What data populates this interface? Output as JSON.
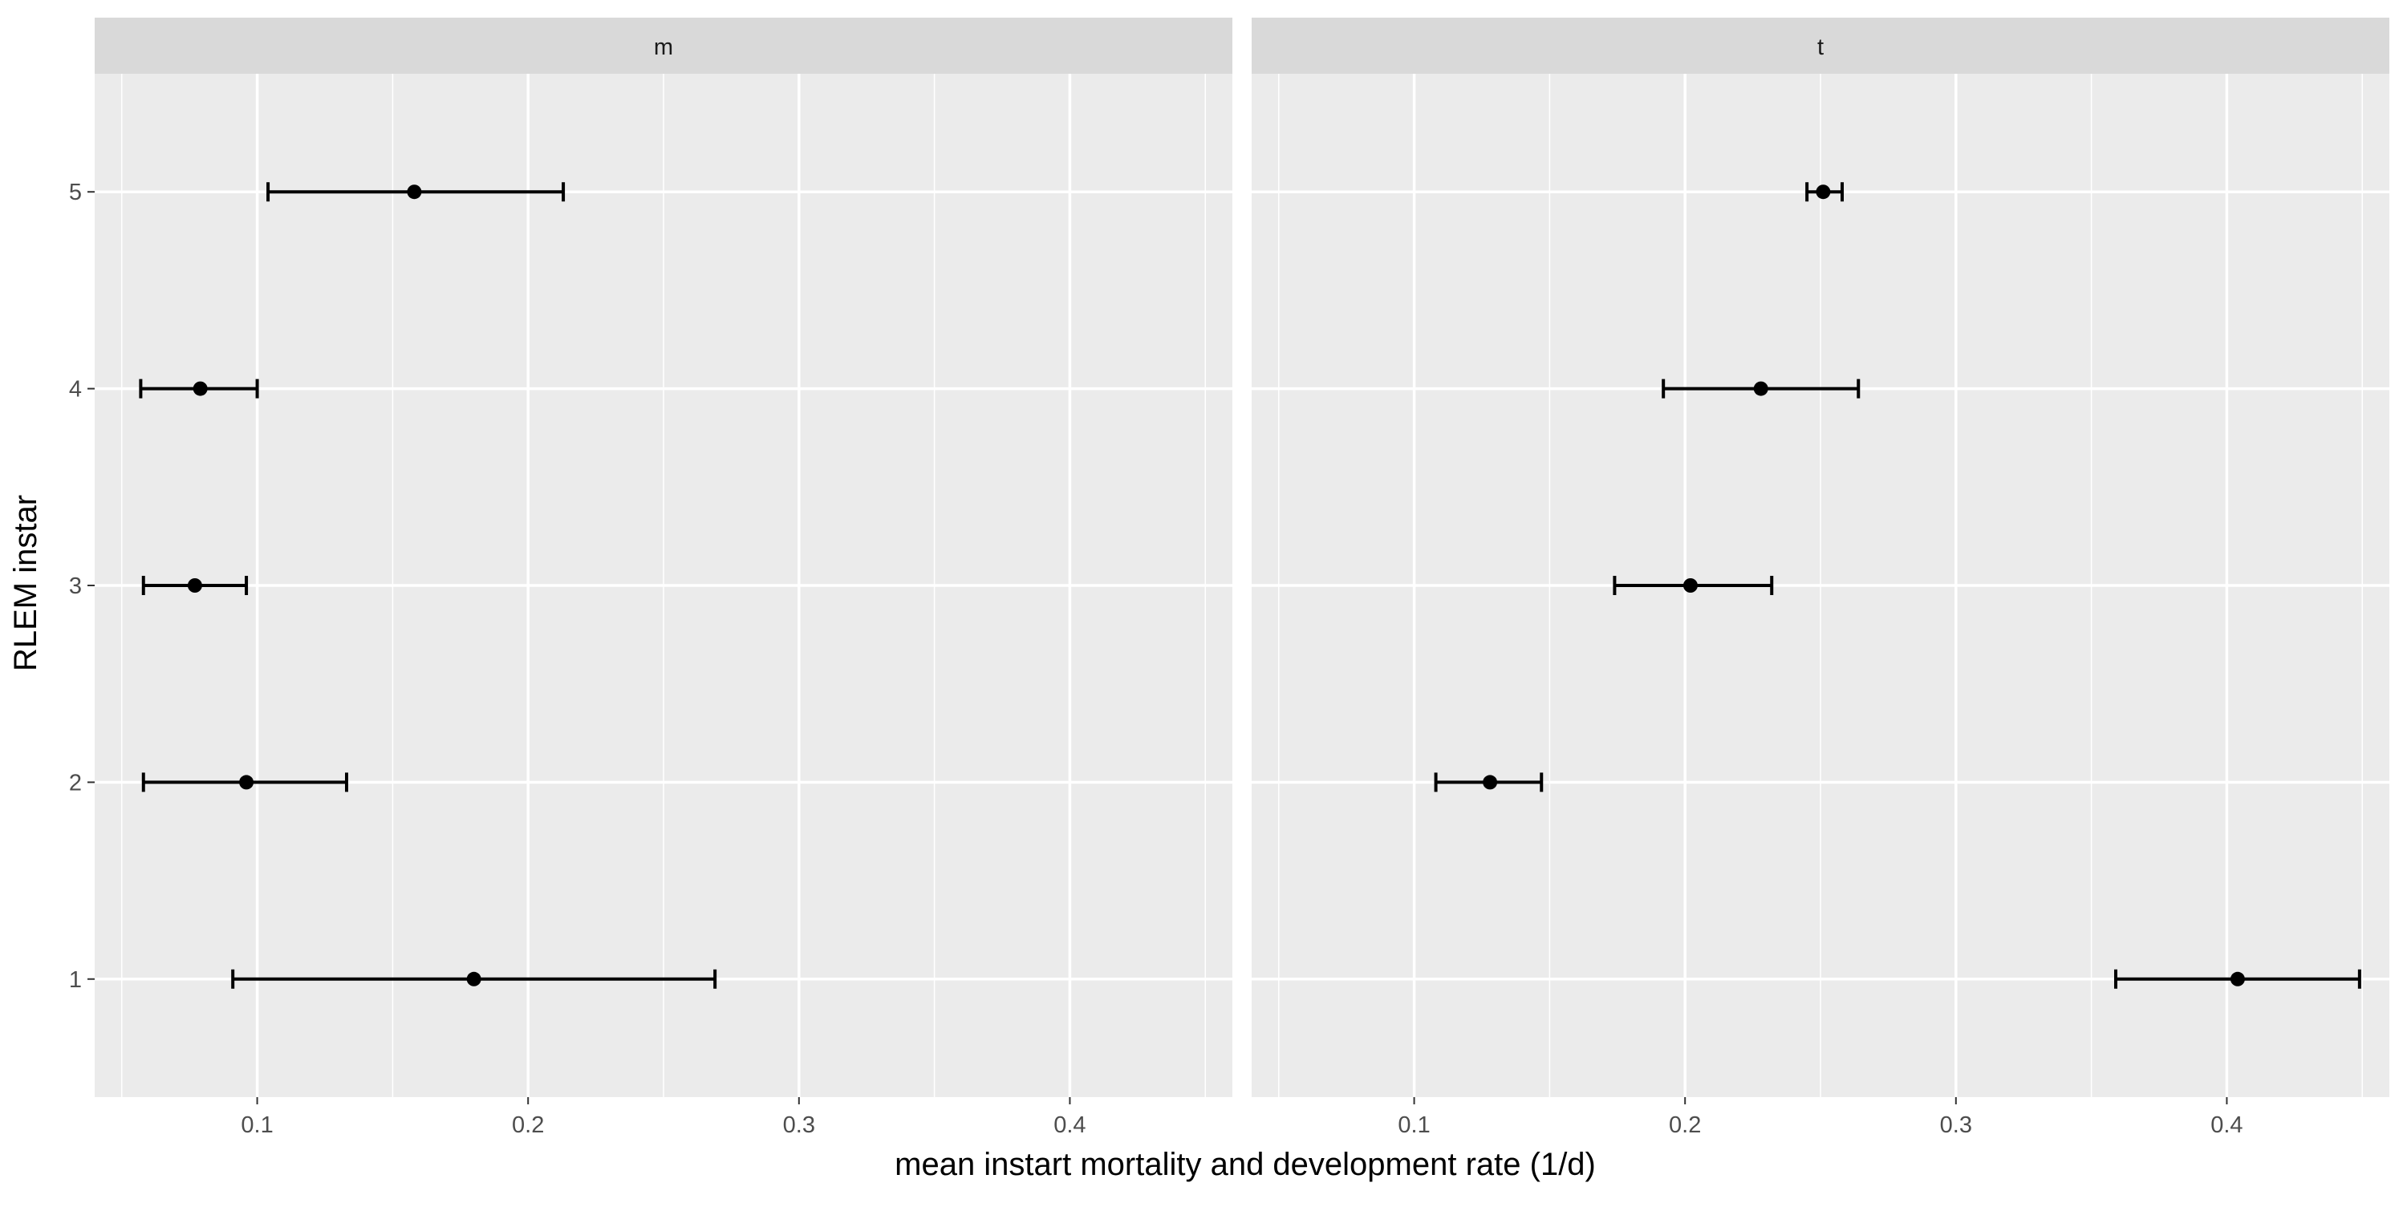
{
  "chart_data": {
    "type": "errorbar",
    "xlabel": "mean instart mortality and development rate (1/d)",
    "ylabel": "RLEM instar",
    "xlim": [
      0.04,
      0.46
    ],
    "ylim": [
      0.4,
      5.6
    ],
    "x_ticks": [
      0.1,
      0.2,
      0.3,
      0.4
    ],
    "x_tick_labels": [
      "0.1",
      "0.2",
      "0.3",
      "0.4"
    ],
    "y_ticks": [
      1,
      2,
      3,
      4,
      5
    ],
    "y_tick_labels": [
      "1",
      "2",
      "3",
      "4",
      "5"
    ],
    "grid": true,
    "facets": [
      {
        "label": "m",
        "points": [
          {
            "instar": 1,
            "mean": 0.18,
            "lower": 0.091,
            "upper": 0.269
          },
          {
            "instar": 2,
            "mean": 0.096,
            "lower": 0.058,
            "upper": 0.133
          },
          {
            "instar": 3,
            "mean": 0.077,
            "lower": 0.058,
            "upper": 0.096
          },
          {
            "instar": 4,
            "mean": 0.079,
            "lower": 0.057,
            "upper": 0.1
          },
          {
            "instar": 5,
            "mean": 0.158,
            "lower": 0.104,
            "upper": 0.213
          }
        ]
      },
      {
        "label": "t",
        "points": [
          {
            "instar": 1,
            "mean": 0.404,
            "lower": 0.359,
            "upper": 0.449
          },
          {
            "instar": 2,
            "mean": 0.128,
            "lower": 0.108,
            "upper": 0.147
          },
          {
            "instar": 3,
            "mean": 0.202,
            "lower": 0.174,
            "upper": 0.232
          },
          {
            "instar": 4,
            "mean": 0.228,
            "lower": 0.192,
            "upper": 0.264
          },
          {
            "instar": 5,
            "mean": 0.251,
            "lower": 0.245,
            "upper": 0.258
          }
        ]
      }
    ]
  }
}
